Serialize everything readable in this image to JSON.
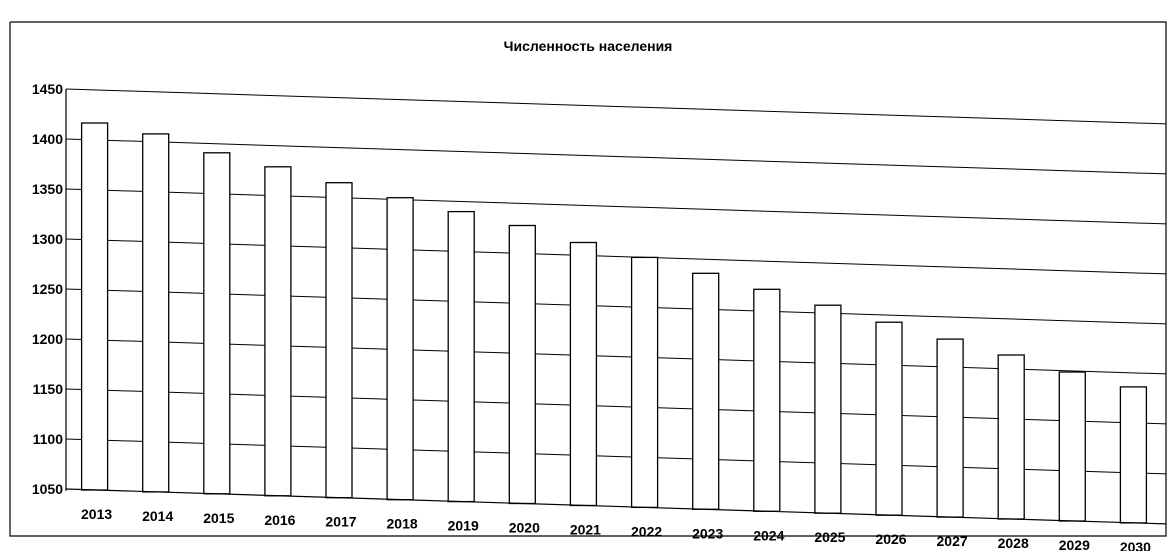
{
  "chart_data": {
    "type": "bar",
    "title": "Численность населения",
    "xlabel": "",
    "ylabel": "",
    "categories": [
      "2013",
      "2014",
      "2015",
      "2016",
      "2017",
      "2018",
      "2019",
      "2020",
      "2021",
      "2022",
      "2023",
      "2024",
      "2025",
      "2026",
      "2027",
      "2028",
      "2029",
      "2030"
    ],
    "values": [
      1417,
      1408,
      1391,
      1379,
      1365,
      1352,
      1340,
      1328,
      1313,
      1300,
      1286,
      1272,
      1258,
      1243,
      1228,
      1214,
      1199,
      1186
    ],
    "ylim": [
      1050,
      1450
    ],
    "yticks": [
      1050,
      1100,
      1150,
      1200,
      1250,
      1300,
      1350,
      1400,
      1450
    ],
    "grid": true,
    "legend": "none",
    "bar_fill": "#ffffff",
    "bar_stroke": "#000000",
    "gridline_color": "#000000"
  }
}
